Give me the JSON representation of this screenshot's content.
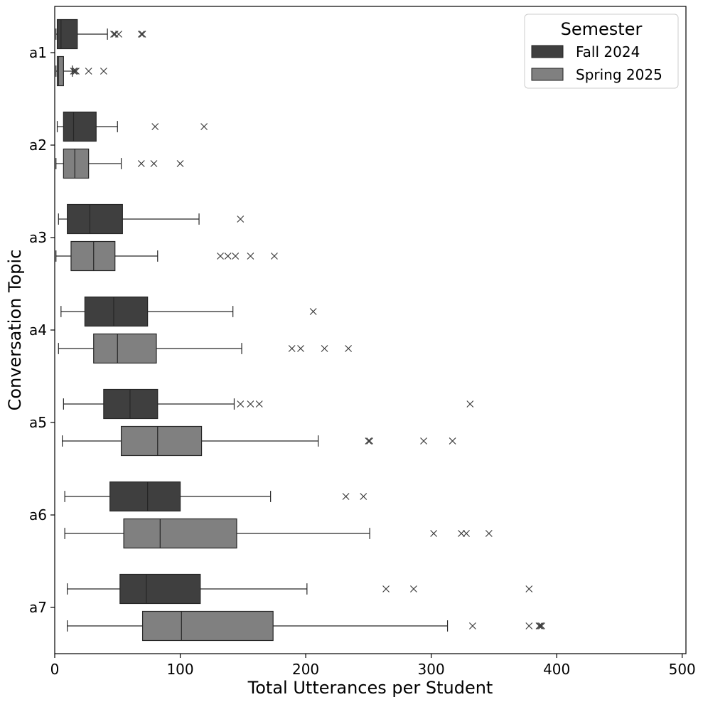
{
  "chart_data": {
    "type": "boxplot",
    "orientation": "horizontal",
    "xlabel": "Total Utterances per Student",
    "ylabel": "Conversation Topic",
    "xlim": [
      0,
      503
    ],
    "xticks": [
      "0",
      "100",
      "200",
      "300",
      "400",
      "500"
    ],
    "grid": false,
    "legend": {
      "title": "Semester",
      "placement": "top-right",
      "entries": [
        "Fall 2024",
        "Spring 2025"
      ]
    },
    "series_colors": [
      "#3f3f3f",
      "#808080"
    ],
    "categories": [
      "a1",
      "a2",
      "a3",
      "a4",
      "a5",
      "a6",
      "a7"
    ],
    "series": [
      {
        "name": "Fall 2024",
        "boxes": [
          {
            "whislo": 1,
            "q1": 2,
            "med": 5,
            "q3": 18,
            "whishi": 42,
            "fliers": [
              47,
              48,
              51,
              69,
              70
            ]
          },
          {
            "whislo": 2,
            "q1": 7,
            "med": 15,
            "q3": 33,
            "whishi": 50,
            "fliers": [
              80,
              119
            ]
          },
          {
            "whislo": 3,
            "q1": 10,
            "med": 28,
            "q3": 54,
            "whishi": 115,
            "fliers": [
              148
            ]
          },
          {
            "whislo": 5,
            "q1": 24,
            "med": 47,
            "q3": 74,
            "whishi": 142,
            "fliers": [
              206
            ]
          },
          {
            "whislo": 7,
            "q1": 39,
            "med": 60,
            "q3": 82,
            "whishi": 143,
            "fliers": [
              148,
              156,
              163,
              331
            ]
          },
          {
            "whislo": 8,
            "q1": 44,
            "med": 74,
            "q3": 100,
            "whishi": 172,
            "fliers": [
              232,
              246
            ]
          },
          {
            "whislo": 10,
            "q1": 52,
            "med": 73,
            "q3": 116,
            "whishi": 201,
            "fliers": [
              264,
              286,
              378
            ]
          }
        ]
      },
      {
        "name": "Spring 2025",
        "boxes": [
          {
            "whislo": 1,
            "q1": 2,
            "med": 3,
            "q3": 7,
            "whishi": 14,
            "fliers": [
              15,
              16,
              17,
              27,
              39
            ]
          },
          {
            "whislo": 1,
            "q1": 7,
            "med": 16,
            "q3": 27,
            "whishi": 53,
            "fliers": [
              69,
              79,
              100
            ]
          },
          {
            "whislo": 1,
            "q1": 13,
            "med": 31,
            "q3": 48,
            "whishi": 82,
            "fliers": [
              132,
              138,
              144,
              156,
              175
            ]
          },
          {
            "whislo": 3,
            "q1": 31,
            "med": 50,
            "q3": 81,
            "whishi": 149,
            "fliers": [
              189,
              196,
              215,
              234
            ]
          },
          {
            "whislo": 6,
            "q1": 53,
            "med": 82,
            "q3": 117,
            "whishi": 210,
            "fliers": [
              250,
              251,
              294,
              317
            ]
          },
          {
            "whislo": 8,
            "q1": 55,
            "med": 84,
            "q3": 145,
            "whishi": 251,
            "fliers": [
              302,
              324,
              328,
              346
            ]
          },
          {
            "whislo": 10,
            "q1": 70,
            "med": 101,
            "q3": 174,
            "whishi": 313,
            "fliers": [
              333,
              378,
              386,
              387,
              388
            ]
          }
        ]
      }
    ]
  }
}
